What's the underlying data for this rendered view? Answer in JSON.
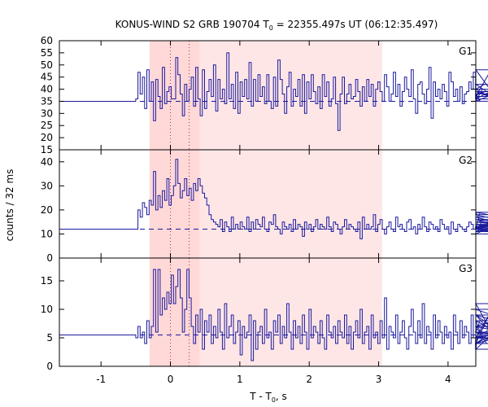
{
  "chart_data": {
    "type": "line",
    "title": "KONUS-WIND S2 GRB 190704 T",
    "title_sub": "0",
    "title_rest": " = 22355.497s UT (06:12:35.497)",
    "xlabel": "T - T",
    "xlabel_sub": "0",
    "xlabel_rest": ", s",
    "ylabel": "counts / 32 ms",
    "xlim": [
      -1.6,
      4.4
    ],
    "xticks": [
      -1,
      0,
      1,
      2,
      3,
      4
    ],
    "shaded_interval": [
      -0.3,
      3.05
    ],
    "peak_interval": [
      -0.3,
      0.42
    ],
    "dotted_lines": [
      0.0,
      0.27
    ],
    "colors": {
      "line": "#1a1a9e",
      "shade": "#ffe6e6",
      "peak_shade": "#ffcccc",
      "dotted": "#b03030"
    },
    "panels": [
      {
        "name": "G1",
        "ylim": [
          15,
          60
        ],
        "yticks": [
          15,
          20,
          25,
          30,
          35,
          40,
          45,
          50,
          55,
          60
        ],
        "background": 35,
        "pre_level": 35,
        "pre_end": -0.5,
        "series": [
          36,
          47,
          38,
          45,
          32,
          48,
          35,
          43,
          27,
          44,
          37,
          32,
          49,
          34,
          39,
          41,
          36,
          36,
          53,
          46,
          38,
          29,
          42,
          35,
          40,
          45,
          33,
          49,
          36,
          29,
          48,
          32,
          39,
          44,
          37,
          50,
          31,
          44,
          36,
          40,
          34,
          55,
          36,
          42,
          32,
          47,
          30,
          43,
          37,
          44,
          36,
          51,
          33,
          44,
          35,
          46,
          37,
          41,
          34,
          46,
          35,
          32,
          45,
          33,
          52,
          44,
          38,
          30,
          41,
          47,
          33,
          40,
          37,
          44,
          33,
          46,
          30,
          43,
          36,
          46,
          39,
          34,
          41,
          32,
          46,
          37,
          43,
          33,
          36,
          45,
          34,
          23,
          38,
          45,
          34,
          38,
          42,
          36,
          37,
          44,
          39,
          33,
          41,
          35,
          44,
          37,
          42,
          33,
          40,
          43,
          39,
          35,
          46,
          41,
          35,
          38,
          47,
          37,
          42,
          33,
          39,
          45,
          40,
          37,
          48,
          36,
          30,
          42,
          43,
          38,
          34,
          40,
          49,
          28,
          43,
          37,
          40,
          36,
          42,
          39,
          33,
          47,
          43,
          37,
          40,
          35,
          41,
          34,
          38,
          39,
          43,
          40,
          47,
          36,
          38,
          35,
          40,
          42,
          39,
          37,
          48,
          38,
          40,
          35,
          39,
          36,
          42
        ]
      },
      {
        "name": "G2",
        "ylim": [
          0,
          45
        ],
        "yticks": [
          0,
          10,
          20,
          30,
          40
        ],
        "background": 12,
        "pre_level": 12,
        "pre_end": -0.5,
        "series": [
          12,
          20,
          17,
          23,
          21,
          18,
          24,
          22,
          36,
          20,
          26,
          21,
          28,
          24,
          33,
          22,
          26,
          30,
          41,
          31,
          25,
          28,
          33,
          26,
          29,
          24,
          31,
          28,
          33,
          30,
          27,
          25,
          22,
          18,
          16,
          15,
          14,
          13,
          16,
          11,
          15,
          13,
          11,
          17,
          12,
          14,
          12,
          15,
          13,
          12,
          17,
          11,
          15,
          12,
          16,
          14,
          13,
          17,
          12,
          11,
          15,
          14,
          18,
          13,
          12,
          10,
          15,
          13,
          12,
          14,
          11,
          16,
          12,
          14,
          13,
          9,
          15,
          12,
          14,
          11,
          13,
          16,
          12,
          14,
          13,
          12,
          17,
          13,
          11,
          15,
          14,
          12,
          10,
          13,
          16,
          12,
          14,
          13,
          12,
          11,
          15,
          8,
          17,
          12,
          14,
          12,
          13,
          18,
          11,
          14,
          16,
          12,
          10,
          13,
          15,
          12,
          11,
          17,
          13,
          14,
          12,
          11,
          15,
          16,
          12,
          13,
          10,
          14,
          12,
          17,
          13,
          11,
          15,
          14,
          12,
          13,
          11,
          16,
          14,
          12,
          13,
          10,
          15,
          12,
          11,
          14,
          13,
          12,
          11,
          13,
          15,
          14,
          12,
          13,
          12,
          19,
          13,
          12,
          14,
          13,
          11,
          15,
          14,
          13,
          12,
          17,
          14,
          13,
          16,
          12,
          10,
          18,
          14,
          12,
          13,
          11,
          15,
          13,
          16,
          14,
          12,
          19,
          14,
          11,
          13,
          15,
          12
        ]
      },
      {
        "name": "G3",
        "ylim": [
          0,
          19
        ],
        "yticks": [
          0,
          5,
          10,
          15
        ],
        "background": 5.5,
        "pre_level": 5.5,
        "pre_end": -0.5,
        "series": [
          5,
          7,
          5,
          6,
          4,
          8,
          5,
          7,
          17,
          6,
          17,
          9,
          12,
          10,
          13,
          11,
          16,
          11,
          14,
          17,
          12,
          6,
          10,
          17,
          12,
          7,
          4,
          9,
          6,
          10,
          3,
          8,
          6,
          9,
          4,
          7,
          5,
          10,
          6,
          3,
          11,
          5,
          7,
          9,
          4,
          6,
          8,
          2,
          7,
          5,
          6,
          9,
          1,
          8,
          3,
          6,
          7,
          4,
          10,
          5,
          6,
          3,
          8,
          6,
          9,
          4,
          7,
          5,
          11,
          6,
          3,
          8,
          5,
          7,
          4,
          9,
          6,
          3,
          10,
          5,
          7,
          6,
          4,
          8,
          5,
          3,
          9,
          6,
          5,
          7,
          4,
          8,
          6,
          5,
          9,
          4,
          7,
          3,
          6,
          8,
          5,
          10,
          4,
          6,
          7,
          3,
          9,
          5,
          6,
          4,
          8,
          5,
          12,
          3,
          7,
          6,
          5,
          9,
          4,
          6,
          8,
          5,
          3,
          7,
          10,
          6,
          4,
          8,
          5,
          11,
          4,
          7,
          6,
          3,
          9,
          5,
          8,
          6,
          4,
          7,
          5,
          6,
          3,
          9,
          6,
          4,
          8,
          5,
          7,
          6,
          4,
          9,
          5,
          3,
          6,
          8,
          5,
          7,
          4,
          9,
          6,
          5,
          11,
          4,
          7,
          6,
          3,
          8,
          5,
          7,
          9,
          4,
          6,
          5,
          10,
          7,
          5,
          4,
          9,
          6,
          5,
          7
        ]
      }
    ]
  }
}
